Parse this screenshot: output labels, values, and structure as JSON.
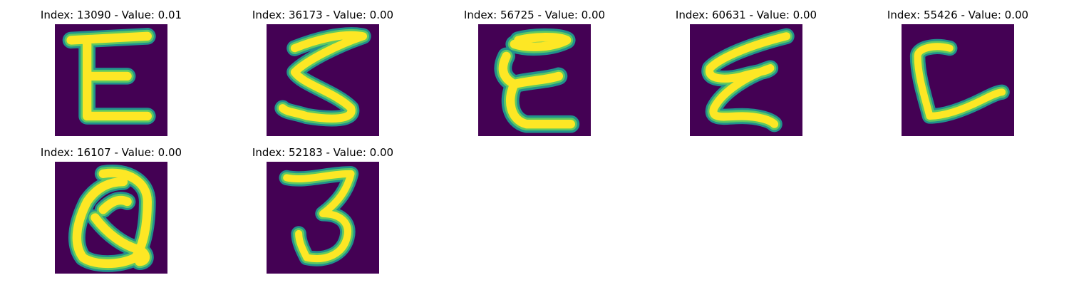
{
  "colors": {
    "background": "#440154",
    "low": "#31688e",
    "mid": "#21918c",
    "high": "#5ec962",
    "peak": "#fde725"
  },
  "panels": [
    {
      "title": "Index: 13090 - Value: 0.01",
      "glyph": "E"
    },
    {
      "title": "Index: 36173 - Value: 0.00",
      "glyph": "3-like Z"
    },
    {
      "title": "Index: 56725 - Value: 0.00",
      "glyph": "E"
    },
    {
      "title": "Index: 60631 - Value: 0.00",
      "glyph": "E"
    },
    {
      "title": "Index: 55426 - Value: 0.00",
      "glyph": "C / L"
    },
    {
      "title": "Index: 16107 - Value: 0.00",
      "glyph": "Q"
    },
    {
      "title": "Index: 52183 - Value: 0.00",
      "glyph": "3"
    }
  ]
}
